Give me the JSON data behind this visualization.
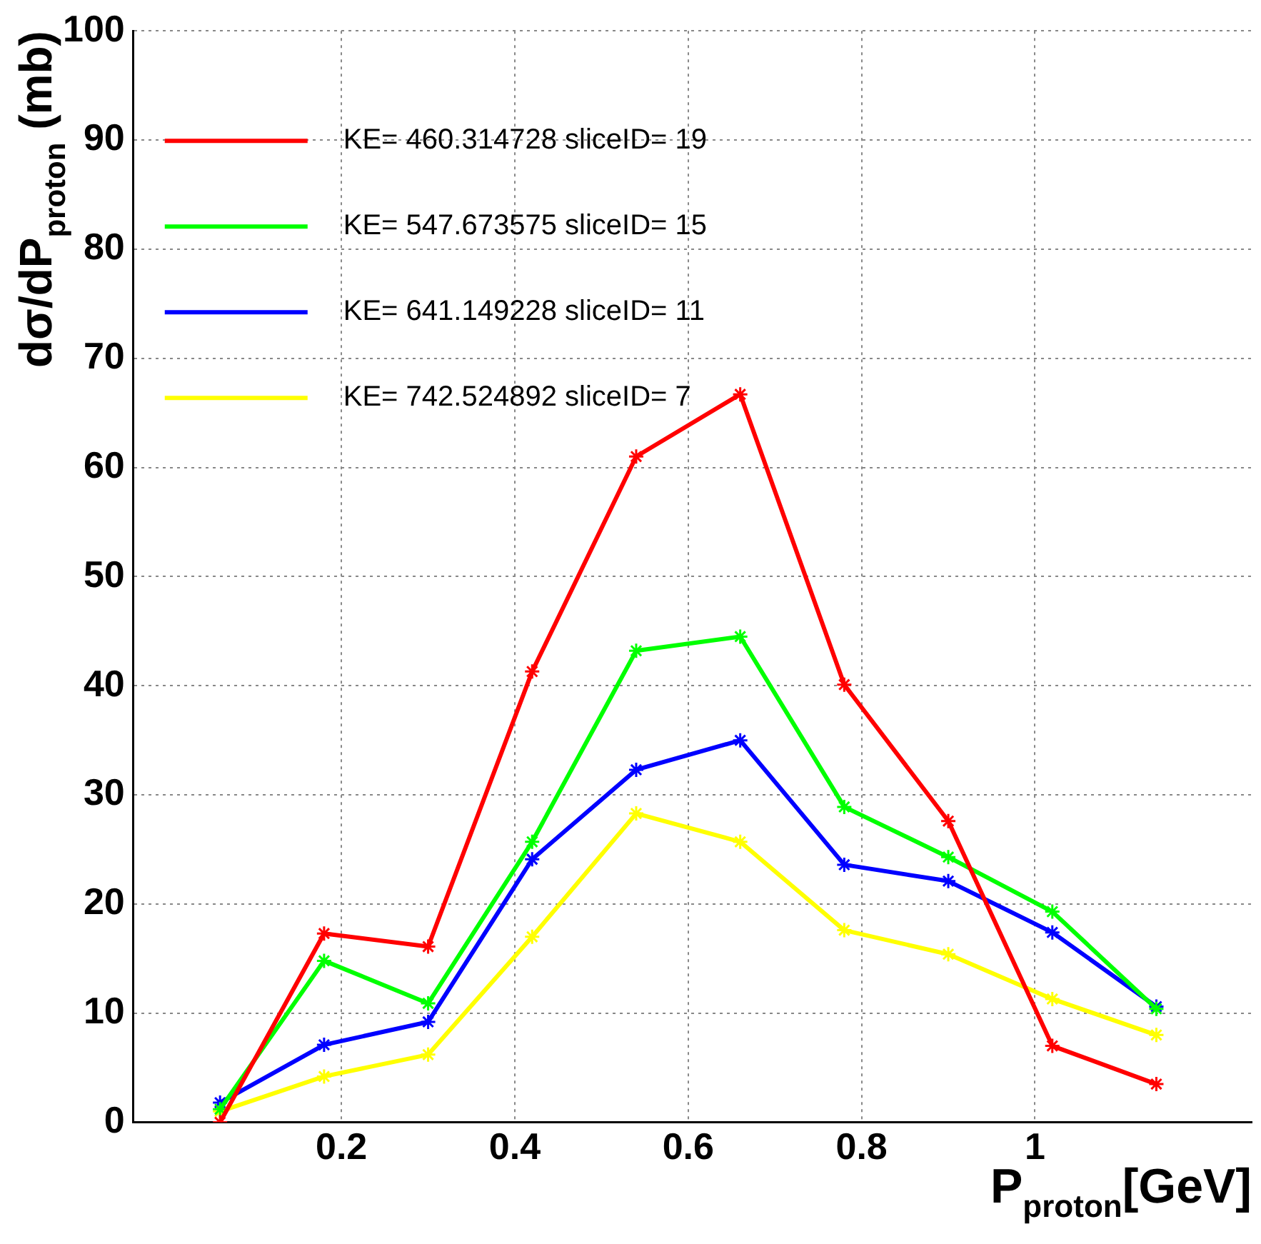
{
  "chart_data": {
    "type": "line",
    "xlabel": "P$_{proton}$[GeV]",
    "ylabel": "dσ/dP$_{proton}$ (mb)",
    "x": [
      0.06,
      0.18,
      0.3,
      0.42,
      0.54,
      0.66,
      0.78,
      0.9,
      1.02,
      1.14
    ],
    "series": [
      {
        "name": "KE= 460.314728 sliceID= 19",
        "color": "#ff0000",
        "values": [
          0,
          17.3,
          16.1,
          41.3,
          61,
          66.7,
          40.1,
          27.6,
          7,
          3.5
        ]
      },
      {
        "name": "KE= 547.673575 sliceID= 15",
        "color": "#00ff00",
        "values": [
          1.2,
          14.8,
          10.9,
          25.7,
          43.2,
          44.5,
          28.9,
          24.3,
          19.3,
          10.4
        ]
      },
      {
        "name": "KE= 641.149228 sliceID= 11",
        "color": "#0000ff",
        "values": [
          1.8,
          7.1,
          9.2,
          24.1,
          32.3,
          35,
          23.6,
          22.1,
          17.4,
          10.6
        ]
      },
      {
        "name": "KE= 742.524892 sliceID= 7",
        "color": "#ffff00",
        "values": [
          1,
          4.2,
          6.2,
          17,
          28.3,
          25.7,
          17.6,
          15.4,
          11.3,
          8
        ]
      }
    ],
    "xlim": [
      -0.04,
      1.25
    ],
    "xticks": [
      0.2,
      0.4,
      0.6,
      0.8,
      1
    ],
    "ylim": [
      0,
      100
    ],
    "yticks": [
      0,
      10,
      20,
      30,
      40,
      50,
      60,
      70,
      80,
      90,
      100
    ],
    "grid": true,
    "legend": "top left",
    "marker": "cross",
    "line_style": "solid"
  }
}
